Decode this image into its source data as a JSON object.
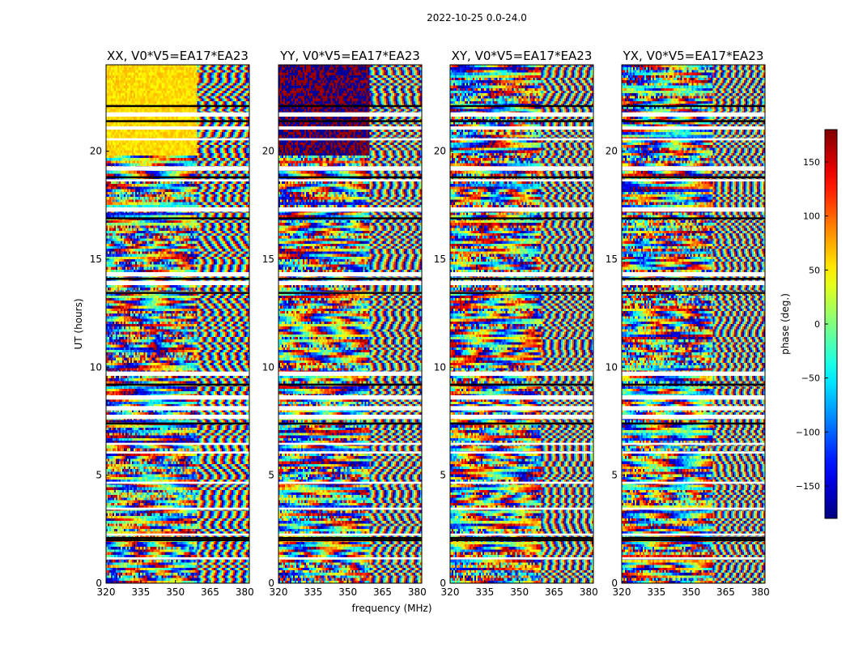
{
  "figure": {
    "suptitle": "2022-10-25 0.0-24.0",
    "xlabel": "frequency (MHz)",
    "ylabel": "UT (hours)",
    "colorbar_label": "phase (deg.)",
    "colorbar_ticks": [
      "150",
      "100",
      "50",
      "0",
      "−50",
      "−100",
      "−150"
    ],
    "colorbar_tick_values": [
      150,
      100,
      50,
      0,
      -50,
      -100,
      -150
    ],
    "colorbar_range": [
      -180,
      180
    ],
    "colormap": "jet"
  },
  "chart_data": [
    {
      "type": "heatmap",
      "title": "XX, V0*V5=EA17*EA23",
      "xlabel": "",
      "ylabel": "UT (hours)",
      "xlim": [
        320,
        382
      ],
      "ylim": [
        0,
        24
      ],
      "xticks": [
        "320",
        "335",
        "350",
        "365",
        "380"
      ],
      "xtick_values": [
        320,
        335,
        350,
        365,
        380
      ],
      "yticks": [
        "0",
        "5",
        "10",
        "15",
        "20"
      ],
      "ytick_values": [
        0,
        5,
        10,
        15,
        20
      ],
      "value": "phase (deg.)",
      "vmin": -180,
      "vmax": 180
    },
    {
      "type": "heatmap",
      "title": "YY, V0*V5=EA17*EA23",
      "xlabel": "frequency (MHz)",
      "ylabel": "",
      "xlim": [
        320,
        382
      ],
      "ylim": [
        0,
        24
      ],
      "xticks": [
        "320",
        "335",
        "350",
        "365",
        "380"
      ],
      "xtick_values": [
        320,
        335,
        350,
        365,
        380
      ],
      "yticks": [
        "0",
        "5",
        "10",
        "15",
        "20"
      ],
      "ytick_values": [
        0,
        5,
        10,
        15,
        20
      ],
      "value": "phase (deg.)",
      "vmin": -180,
      "vmax": 180
    },
    {
      "type": "heatmap",
      "title": "XY, V0*V5=EA17*EA23",
      "xlabel": "",
      "ylabel": "",
      "xlim": [
        320,
        382
      ],
      "ylim": [
        0,
        24
      ],
      "xticks": [
        "320",
        "335",
        "350",
        "365",
        "380"
      ],
      "xtick_values": [
        320,
        335,
        350,
        365,
        380
      ],
      "yticks": [
        "0",
        "5",
        "10",
        "15",
        "20"
      ],
      "ytick_values": [
        0,
        5,
        10,
        15,
        20
      ],
      "value": "phase (deg.)",
      "vmin": -180,
      "vmax": 180
    },
    {
      "type": "heatmap",
      "title": "YX, V0*V5=EA17*EA23",
      "xlabel": "",
      "ylabel": "",
      "xlim": [
        320,
        382
      ],
      "ylim": [
        0,
        24
      ],
      "xticks": [
        "320",
        "335",
        "350",
        "365",
        "380"
      ],
      "xtick_values": [
        320,
        335,
        350,
        365,
        380
      ],
      "yticks": [
        "0",
        "5",
        "10",
        "15",
        "20"
      ],
      "ytick_values": [
        0,
        5,
        10,
        15,
        20
      ],
      "value": "phase (deg.)",
      "vmin": -180,
      "vmax": 180
    }
  ]
}
